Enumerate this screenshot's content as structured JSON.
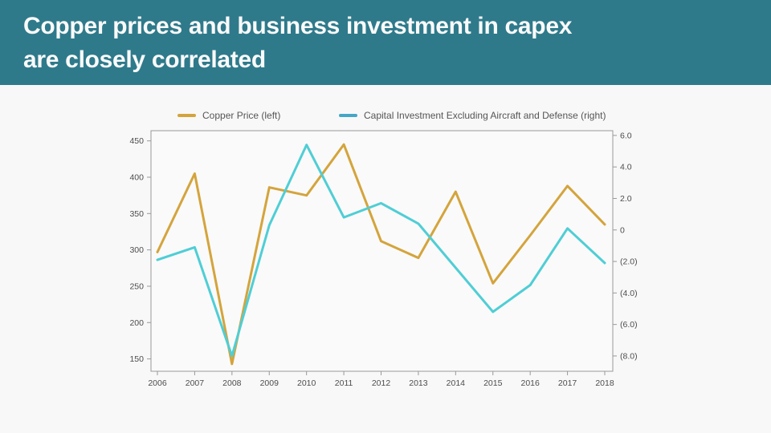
{
  "header": {
    "title_line1": "Copper prices and business investment in capex",
    "title_line2": "are closely correlated",
    "bg_color": "#2e7a8b",
    "text_color": "#fafafa"
  },
  "legend": {
    "items": [
      {
        "label": "Copper Price (left)",
        "color": "#d4a43c"
      },
      {
        "label": "Capital Investment Excluding Aircraft and Defense (right)",
        "color": "#45a7c6"
      }
    ]
  },
  "chart_data": {
    "type": "line",
    "x": [
      "2006",
      "2007",
      "2008",
      "2009",
      "2010",
      "2011",
      "2012",
      "2013",
      "2014",
      "2015",
      "2016",
      "2017",
      "2018"
    ],
    "series": [
      {
        "name": "Copper Price (left)",
        "axis": "left",
        "color": "#d4a43c",
        "values": [
          297,
          405,
          143,
          386,
          375,
          445,
          312,
          289,
          380,
          254,
          320,
          388,
          335
        ]
      },
      {
        "name": "Capital Investment Excluding Aircraft and Defense (right)",
        "axis": "right",
        "color": "#4fced5",
        "values": [
          -1.9,
          -1.1,
          -8.0,
          0.3,
          5.4,
          0.8,
          1.7,
          0.4,
          -2.4,
          -5.2,
          -3.5,
          0.1,
          -2.1
        ]
      }
    ],
    "left_axis": {
      "ticks": [
        450,
        400,
        350,
        300,
        250,
        200,
        150
      ],
      "tick_labels": [
        "450",
        "400",
        "350",
        "300",
        "250",
        "200",
        "150"
      ],
      "range": [
        133,
        464
      ]
    },
    "right_axis": {
      "ticks": [
        6,
        4,
        2,
        0,
        -2,
        -4,
        -6,
        -8
      ],
      "tick_labels": [
        "6.0",
        "4.0",
        "2.0",
        "0",
        "(2.0)",
        "(4.0)",
        "(6.0)",
        "(8.0)"
      ],
      "range": [
        -8.97,
        6.3
      ]
    },
    "grid": false,
    "legend_position": "top",
    "plot_bg": "#fafafa",
    "axis_color": "#999999",
    "title": "Copper prices and business investment in capex are closely correlated"
  }
}
